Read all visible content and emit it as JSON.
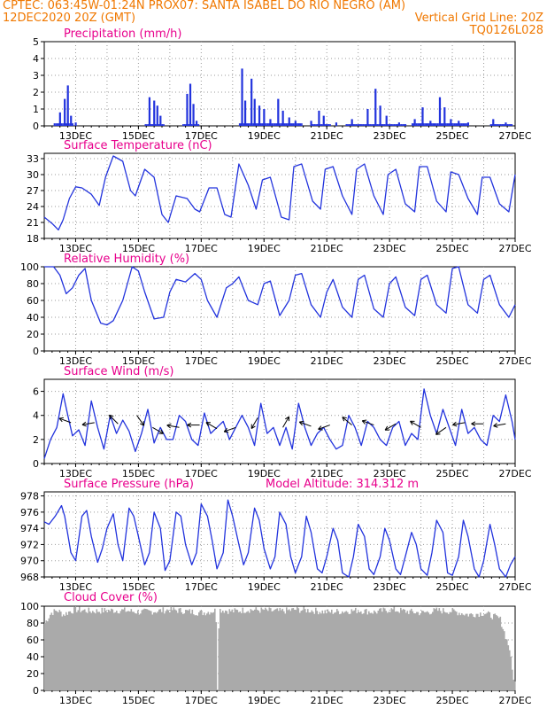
{
  "header": {
    "line1_left": "CPTEC:   063:45W-01:24N  PROX07: SANTA ISABEL DO RIO NEGRO (AM)",
    "line2_left": "12DEC2020 20Z (GMT)",
    "line2_right": "Vertical Grid Line: 20Z",
    "line3_right": "TQ0126L028",
    "model_altitude": "Model Altitude: 314.312 m"
  },
  "colors": {
    "header_text": "#f07800",
    "title_text": "#e8008c",
    "series": "#2233dd",
    "cloud": "#aaaaaa",
    "grid": "#999999"
  },
  "x_ticks": [
    "13DEC",
    "15DEC",
    "17DEC",
    "19DEC",
    "21DEC",
    "23DEC",
    "25DEC",
    "27DEC"
  ],
  "chart_data": [
    {
      "type": "bar",
      "title": "Precipitation (mm/h)",
      "ylim": [
        0,
        5
      ],
      "yticks": [
        0,
        1,
        2,
        3,
        4,
        5
      ],
      "spikes": [
        [
          12.5,
          0.8
        ],
        [
          12.65,
          1.6
        ],
        [
          12.75,
          2.4
        ],
        [
          12.85,
          0.6
        ],
        [
          13.0,
          0.2
        ],
        [
          15.35,
          1.7
        ],
        [
          15.5,
          1.5
        ],
        [
          15.6,
          1.2
        ],
        [
          15.7,
          0.6
        ],
        [
          16.55,
          1.9
        ],
        [
          16.65,
          2.5
        ],
        [
          16.75,
          1.3
        ],
        [
          16.85,
          0.3
        ],
        [
          18.3,
          3.4
        ],
        [
          18.4,
          1.5
        ],
        [
          18.6,
          2.8
        ],
        [
          18.7,
          1.6
        ],
        [
          18.85,
          1.2
        ],
        [
          19.0,
          1.0
        ],
        [
          19.2,
          0.4
        ],
        [
          19.45,
          1.6
        ],
        [
          19.6,
          0.9
        ],
        [
          19.8,
          0.5
        ],
        [
          20.0,
          0.3
        ],
        [
          20.5,
          0.3
        ],
        [
          20.75,
          0.9
        ],
        [
          20.9,
          0.6
        ],
        [
          21.3,
          0.2
        ],
        [
          21.8,
          0.4
        ],
        [
          22.3,
          1.0
        ],
        [
          22.55,
          2.2
        ],
        [
          22.7,
          1.2
        ],
        [
          22.9,
          0.6
        ],
        [
          23.3,
          0.2
        ],
        [
          23.8,
          0.4
        ],
        [
          24.05,
          1.1
        ],
        [
          24.3,
          0.3
        ],
        [
          24.6,
          1.7
        ],
        [
          24.75,
          1.1
        ],
        [
          24.95,
          0.4
        ],
        [
          25.2,
          0.3
        ],
        [
          25.5,
          0.2
        ],
        [
          26.3,
          0.4
        ],
        [
          26.7,
          0.2
        ]
      ],
      "bar_baseline": [
        [
          12.3,
          12.9,
          0.15
        ],
        [
          15.2,
          15.8,
          0.1
        ],
        [
          16.4,
          16.9,
          0.1
        ],
        [
          18.2,
          20.2,
          0.15
        ],
        [
          20.5,
          21.1,
          0.1
        ],
        [
          21.6,
          23.5,
          0.1
        ],
        [
          23.7,
          25.5,
          0.15
        ],
        [
          26.2,
          26.9,
          0.1
        ]
      ]
    },
    {
      "type": "line",
      "title": "Surface Temperature (nC)",
      "ylim": [
        18,
        34
      ],
      "yticks": [
        18,
        21,
        24,
        27,
        30,
        33
      ],
      "x": [
        12.0,
        12.25,
        12.45,
        12.6,
        12.8,
        13.0,
        13.2,
        13.5,
        13.75,
        13.95,
        14.2,
        14.5,
        14.75,
        14.9,
        15.2,
        15.5,
        15.75,
        15.95,
        16.2,
        16.55,
        16.8,
        16.95,
        17.25,
        17.5,
        17.75,
        17.95,
        18.2,
        18.5,
        18.75,
        18.95,
        19.2,
        19.55,
        19.8,
        19.95,
        20.2,
        20.55,
        20.8,
        20.95,
        21.2,
        21.5,
        21.8,
        21.95,
        22.2,
        22.5,
        22.8,
        22.95,
        23.2,
        23.5,
        23.8,
        23.95,
        24.2,
        24.5,
        24.8,
        24.95,
        25.2,
        25.5,
        25.8,
        25.95,
        26.2,
        26.5,
        26.8,
        27.0
      ],
      "y": [
        22,
        20.8,
        19.6,
        21.5,
        25.5,
        27.7,
        27.5,
        26.3,
        24.2,
        29.5,
        33.5,
        32.5,
        27.0,
        26.0,
        31.0,
        29.5,
        22.5,
        21.0,
        26.0,
        25.5,
        23.5,
        23.0,
        27.5,
        27.5,
        22.5,
        22.0,
        32.0,
        28.0,
        23.5,
        29.0,
        29.5,
        22.0,
        21.5,
        31.5,
        32.0,
        25.0,
        23.5,
        31.0,
        31.5,
        26.0,
        22.5,
        31.0,
        32.0,
        26.0,
        22.5,
        30.0,
        31.0,
        24.5,
        23.0,
        31.5,
        31.5,
        25.0,
        23.0,
        30.5,
        30.0,
        25.5,
        22.5,
        29.5,
        29.5,
        24.5,
        23.0,
        30.0
      ]
    },
    {
      "type": "line",
      "title": "Relative Humidity (%)",
      "ylim": [
        0,
        100
      ],
      "yticks": [
        0,
        20,
        40,
        60,
        80,
        100
      ],
      "x": [
        12.0,
        12.3,
        12.5,
        12.7,
        12.9,
        13.1,
        13.3,
        13.5,
        13.8,
        14.0,
        14.2,
        14.5,
        14.8,
        15.0,
        15.2,
        15.5,
        15.8,
        16.0,
        16.2,
        16.5,
        16.8,
        17.0,
        17.2,
        17.5,
        17.8,
        18.0,
        18.2,
        18.5,
        18.8,
        19.0,
        19.2,
        19.5,
        19.8,
        20.0,
        20.2,
        20.5,
        20.8,
        21.0,
        21.2,
        21.5,
        21.8,
        22.0,
        22.2,
        22.5,
        22.8,
        23.0,
        23.2,
        23.5,
        23.8,
        24.0,
        24.2,
        24.5,
        24.8,
        25.0,
        25.2,
        25.5,
        25.8,
        26.0,
        26.2,
        26.5,
        26.8,
        27.0
      ],
      "y": [
        100,
        100,
        90,
        68,
        75,
        90,
        98,
        60,
        33,
        31,
        36,
        60,
        100,
        95,
        70,
        38,
        40,
        70,
        85,
        82,
        92,
        85,
        60,
        40,
        75,
        80,
        88,
        60,
        55,
        80,
        83,
        42,
        60,
        90,
        92,
        55,
        40,
        70,
        85,
        52,
        40,
        85,
        90,
        50,
        40,
        80,
        88,
        52,
        42,
        85,
        90,
        55,
        45,
        98,
        100,
        55,
        45,
        85,
        90,
        55,
        40,
        55
      ]
    },
    {
      "type": "line",
      "title": "Surface Wind (m/s)",
      "ylim": [
        0,
        7
      ],
      "yticks": [
        0,
        2,
        4,
        6
      ],
      "x": [
        12.0,
        12.2,
        12.4,
        12.6,
        12.75,
        12.9,
        13.1,
        13.3,
        13.5,
        13.7,
        13.9,
        14.1,
        14.3,
        14.5,
        14.7,
        14.9,
        15.1,
        15.3,
        15.5,
        15.7,
        15.9,
        16.1,
        16.3,
        16.5,
        16.7,
        16.9,
        17.1,
        17.3,
        17.5,
        17.7,
        17.9,
        18.1,
        18.3,
        18.5,
        18.7,
        18.9,
        19.1,
        19.3,
        19.5,
        19.7,
        19.9,
        20.1,
        20.3,
        20.5,
        20.7,
        20.9,
        21.1,
        21.3,
        21.5,
        21.7,
        21.9,
        22.1,
        22.3,
        22.5,
        22.7,
        22.9,
        23.1,
        23.3,
        23.5,
        23.7,
        23.9,
        24.1,
        24.3,
        24.5,
        24.7,
        24.9,
        25.1,
        25.3,
        25.5,
        25.7,
        25.9,
        26.1,
        26.3,
        26.5,
        26.7,
        26.9,
        27.0
      ],
      "y": [
        0.4,
        2.0,
        3.0,
        5.8,
        4.0,
        2.3,
        2.8,
        1.5,
        5.2,
        3.0,
        1.2,
        4.0,
        2.5,
        3.6,
        2.7,
        1.0,
        2.5,
        4.5,
        1.7,
        3.0,
        2.0,
        2.0,
        4.0,
        3.5,
        2.0,
        1.5,
        4.2,
        2.5,
        3.0,
        3.5,
        2.0,
        3.0,
        4.0,
        3.0,
        1.5,
        5.0,
        2.5,
        3.0,
        1.5,
        3.0,
        1.2,
        5.0,
        3.0,
        1.5,
        2.5,
        3.0,
        2.0,
        1.2,
        1.5,
        4.0,
        3.0,
        1.5,
        3.5,
        3.0,
        2.0,
        1.5,
        3.0,
        3.5,
        1.5,
        2.5,
        2.0,
        6.2,
        4.0,
        2.5,
        4.5,
        3.0,
        1.5,
        4.5,
        2.5,
        3.0,
        2.0,
        1.5,
        4.0,
        3.5,
        5.7,
        3.5,
        2.0
      ]
    },
    {
      "type": "line",
      "title": "Surface Pressure (hPa)",
      "ylim": [
        968,
        978.5
      ],
      "yticks": [
        968,
        970,
        972,
        974,
        976,
        978
      ],
      "x": [
        12.0,
        12.15,
        12.35,
        12.55,
        12.65,
        12.85,
        13.0,
        13.2,
        13.35,
        13.5,
        13.7,
        13.85,
        14.0,
        14.2,
        14.35,
        14.5,
        14.7,
        14.85,
        15.0,
        15.2,
        15.35,
        15.5,
        15.7,
        15.85,
        16.0,
        16.2,
        16.35,
        16.5,
        16.7,
        16.85,
        17.0,
        17.2,
        17.35,
        17.5,
        17.7,
        17.85,
        18.0,
        18.2,
        18.35,
        18.5,
        18.7,
        18.85,
        19.0,
        19.2,
        19.35,
        19.5,
        19.7,
        19.85,
        20.0,
        20.2,
        20.35,
        20.5,
        20.7,
        20.85,
        21.0,
        21.2,
        21.35,
        21.5,
        21.7,
        21.85,
        22.0,
        22.2,
        22.35,
        22.5,
        22.7,
        22.85,
        23.0,
        23.2,
        23.35,
        23.5,
        23.7,
        23.85,
        24.0,
        24.2,
        24.35,
        24.5,
        24.7,
        24.85,
        25.0,
        25.2,
        25.35,
        25.5,
        25.7,
        25.85,
        26.0,
        26.2,
        26.35,
        26.5,
        26.7,
        26.85,
        27.0
      ],
      "y": [
        974.8,
        974.5,
        975.5,
        976.8,
        975.5,
        971.0,
        970.0,
        975.5,
        976.2,
        973.0,
        969.8,
        971.5,
        974.0,
        975.8,
        972.0,
        970.0,
        976.5,
        975.5,
        973.0,
        969.5,
        971.0,
        976.0,
        974.0,
        968.8,
        970.0,
        976.0,
        975.5,
        972.0,
        969.5,
        971.0,
        977.0,
        975.5,
        972.5,
        969.0,
        971.0,
        977.5,
        975.5,
        972.0,
        969.5,
        971.0,
        976.5,
        975.0,
        971.5,
        969.0,
        970.5,
        976.0,
        974.5,
        970.5,
        968.5,
        970.5,
        975.5,
        973.5,
        969.0,
        968.5,
        970.5,
        974.0,
        972.5,
        968.5,
        968.0,
        970.5,
        974.5,
        973.0,
        969.0,
        968.3,
        970.5,
        974.0,
        972.5,
        969.0,
        968.3,
        970.5,
        973.5,
        972.0,
        969.0,
        968.2,
        971.0,
        975.0,
        973.5,
        968.5,
        968.2,
        970.5,
        975.0,
        973.0,
        969.0,
        968.0,
        970.0,
        974.5,
        972.0,
        969.0,
        968.0,
        969.5,
        970.5
      ]
    },
    {
      "type": "bar",
      "title": "Cloud Cover (%)",
      "ylim": [
        0,
        100
      ],
      "yticks": [
        0,
        20,
        40,
        60,
        80,
        100
      ],
      "x": [
        12.0,
        12.2,
        12.4,
        12.6,
        12.8,
        13.0,
        13.5,
        14.0,
        14.5,
        15.0,
        15.5,
        16.0,
        16.5,
        17.0,
        17.45,
        17.5,
        17.55,
        18.0,
        18.5,
        19.0,
        19.5,
        20.0,
        20.5,
        21.0,
        21.5,
        22.0,
        22.5,
        23.0,
        23.5,
        24.0,
        24.5,
        25.0,
        25.5,
        26.0,
        26.5,
        26.8,
        26.9,
        27.0
      ],
      "y": [
        80,
        92,
        95,
        90,
        94,
        96,
        94,
        95,
        95,
        93,
        94,
        96,
        94,
        92,
        95,
        0,
        96,
        94,
        96,
        95,
        94,
        96,
        95,
        93,
        94,
        95,
        93,
        96,
        94,
        92,
        95,
        94,
        90,
        92,
        85,
        50,
        20,
        5
      ]
    }
  ]
}
